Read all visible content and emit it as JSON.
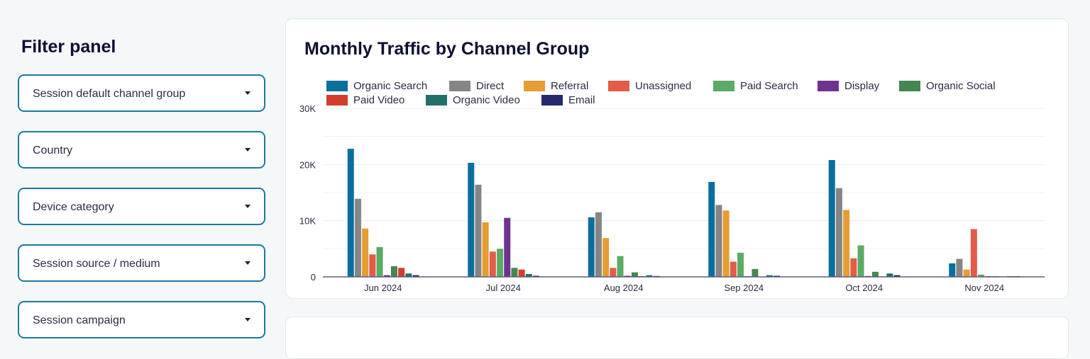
{
  "filter_panel": {
    "title": "Filter panel",
    "filters": [
      {
        "label": "Session default channel group"
      },
      {
        "label": "Country"
      },
      {
        "label": "Device category"
      },
      {
        "label": "Session source / medium"
      },
      {
        "label": "Session campaign"
      }
    ]
  },
  "chart_card": {
    "title": "Monthly Traffic by Channel Group"
  },
  "chart_data": {
    "type": "bar",
    "title": "Monthly Traffic by Channel Group",
    "categories": [
      "Jun 2024",
      "Jul 2024",
      "Aug 2024",
      "Sep 2024",
      "Oct 2024",
      "Nov 2024"
    ],
    "ylim": [
      0,
      30000
    ],
    "yticks": [
      {
        "value": 0,
        "label": "0"
      },
      {
        "value": 10000,
        "label": "10K"
      },
      {
        "value": 20000,
        "label": "20K"
      },
      {
        "value": 30000,
        "label": "30K"
      }
    ],
    "grid": true,
    "legend": "top",
    "series": [
      {
        "name": "Organic Search",
        "color": "#0a6f9c",
        "values": [
          22800,
          20300,
          10600,
          16900,
          20800,
          2400
        ]
      },
      {
        "name": "Direct",
        "color": "#858585",
        "values": [
          13900,
          16400,
          11500,
          12800,
          15800,
          3200
        ]
      },
      {
        "name": "Referral",
        "color": "#e59c32",
        "values": [
          8600,
          9700,
          6900,
          11800,
          11900,
          1300
        ]
      },
      {
        "name": "Unassigned",
        "color": "#e25c48",
        "values": [
          4000,
          4500,
          1600,
          2700,
          3300,
          8500
        ]
      },
      {
        "name": "Paid Search",
        "color": "#5aab66",
        "values": [
          5300,
          5000,
          3700,
          4300,
          5600,
          400
        ]
      },
      {
        "name": "Display",
        "color": "#6e3391",
        "values": [
          300,
          10500,
          200,
          50,
          150,
          50
        ]
      },
      {
        "name": "Organic Social",
        "color": "#458752",
        "values": [
          1900,
          1600,
          800,
          1400,
          900,
          50
        ]
      },
      {
        "name": "Paid Video",
        "color": "#d43d2b",
        "values": [
          1600,
          1300,
          50,
          0,
          0,
          0
        ]
      },
      {
        "name": "Organic Video",
        "color": "#22706a",
        "values": [
          600,
          500,
          300,
          300,
          600,
          50
        ]
      },
      {
        "name": "Email",
        "color": "#262a6b",
        "values": [
          300,
          200,
          150,
          200,
          300,
          50
        ]
      }
    ]
  }
}
